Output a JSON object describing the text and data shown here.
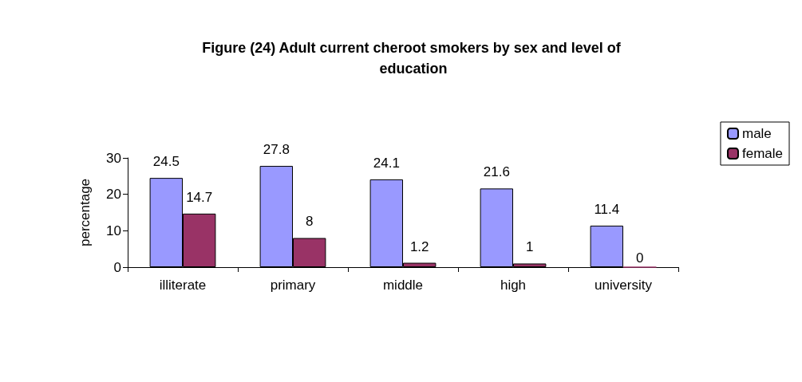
{
  "chart_data": {
    "type": "bar",
    "title": "Figure (24) Adult current cheroot smokers by sex and level of education",
    "ylabel": "percentage",
    "categories": [
      "illiterate",
      "primary",
      "middle",
      "high",
      "university"
    ],
    "series": [
      {
        "name": "male",
        "color": "#9999ff",
        "values": [
          24.5,
          27.8,
          24.1,
          21.6,
          11.4
        ]
      },
      {
        "name": "female",
        "color": "#993366",
        "values": [
          14.7,
          8,
          1.2,
          1,
          0
        ]
      }
    ],
    "ylim": [
      0,
      30
    ],
    "yticks": [
      0,
      10,
      20,
      30
    ],
    "data_labels": true,
    "grid": false,
    "legend": "right"
  }
}
